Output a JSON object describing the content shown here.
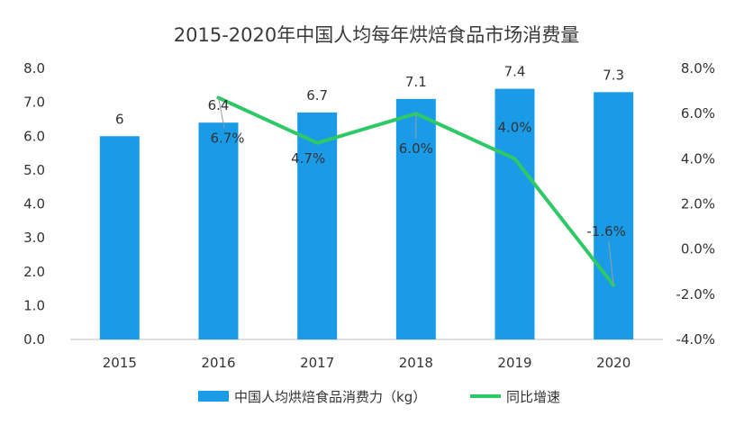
{
  "chart_data": {
    "type": "bar",
    "title": "2015-2020年中国人均每年烘焙食品市场消费量",
    "categories": [
      "2015",
      "2016",
      "2017",
      "2018",
      "2019",
      "2020"
    ],
    "series": [
      {
        "name": "中国人均烘焙食品消费力（kg）",
        "type": "bar",
        "axis": "left",
        "color": "#1a9be8",
        "values": [
          6.0,
          6.4,
          6.7,
          7.1,
          7.4,
          7.3
        ],
        "labels": [
          "6",
          "6.4",
          "6.7",
          "7.1",
          "7.4",
          "7.3"
        ]
      },
      {
        "name": "同比增速",
        "type": "line",
        "axis": "right",
        "color": "#2ec866",
        "values": [
          null,
          6.7,
          4.7,
          6.0,
          4.0,
          -1.6
        ],
        "labels": [
          "",
          "6.7%",
          "4.7%",
          "6.0%",
          "4.0%",
          "-1.6%"
        ]
      }
    ],
    "y_left": {
      "min": 0,
      "max": 8,
      "step": 1,
      "tick_labels": [
        "0.0",
        "1.0",
        "2.0",
        "3.0",
        "4.0",
        "5.0",
        "6.0",
        "7.0",
        "8.0"
      ]
    },
    "y_right": {
      "min": -4,
      "max": 8,
      "step": 2,
      "tick_labels": [
        "-4.0%",
        "-2.0%",
        "0.0%",
        "2.0%",
        "4.0%",
        "6.0%",
        "8.0%"
      ]
    },
    "legend_position": "bottom-center",
    "grid": false
  }
}
